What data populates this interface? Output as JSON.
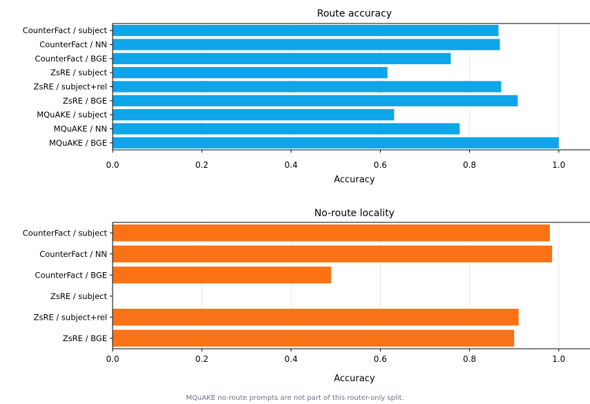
{
  "chart_data": [
    {
      "type": "bar",
      "orientation": "horizontal",
      "title": "Route accuracy",
      "xlabel": "Accuracy",
      "ylabel": "",
      "xlim": [
        0,
        1.07
      ],
      "xticks": [
        "0.0",
        "0.2",
        "0.4",
        "0.6",
        "0.8",
        "1.0"
      ],
      "grid": "x",
      "color": "#0ea5e9",
      "categories": [
        "CounterFact / subject",
        "CounterFact / NN",
        "CounterFact / BGE",
        "ZsRE / subject",
        "ZsRE / subject+rel",
        "ZsRE / BGE",
        "MQuAKE / subject",
        "MQuAKE / NN",
        "MQuAKE / BGE"
      ],
      "values": [
        0.865,
        0.868,
        0.758,
        0.616,
        0.871,
        0.908,
        0.631,
        0.778,
        1.0
      ]
    },
    {
      "type": "bar",
      "orientation": "horizontal",
      "title": "No-route locality",
      "xlabel": "Accuracy",
      "ylabel": "",
      "xlim": [
        0,
        1.07
      ],
      "xticks": [
        "0.0",
        "0.2",
        "0.4",
        "0.6",
        "0.8",
        "1.0"
      ],
      "grid": "x",
      "color": "#f97316",
      "categories": [
        "CounterFact / subject",
        "CounterFact / NN",
        "CounterFact / BGE",
        "ZsRE / subject",
        "ZsRE / subject+rel",
        "ZsRE / BGE"
      ],
      "values": [
        0.98,
        0.985,
        0.49,
        0.0,
        0.91,
        0.9
      ]
    }
  ],
  "footnote": "MQuAKE no-route prompts are not part of this router-only split."
}
